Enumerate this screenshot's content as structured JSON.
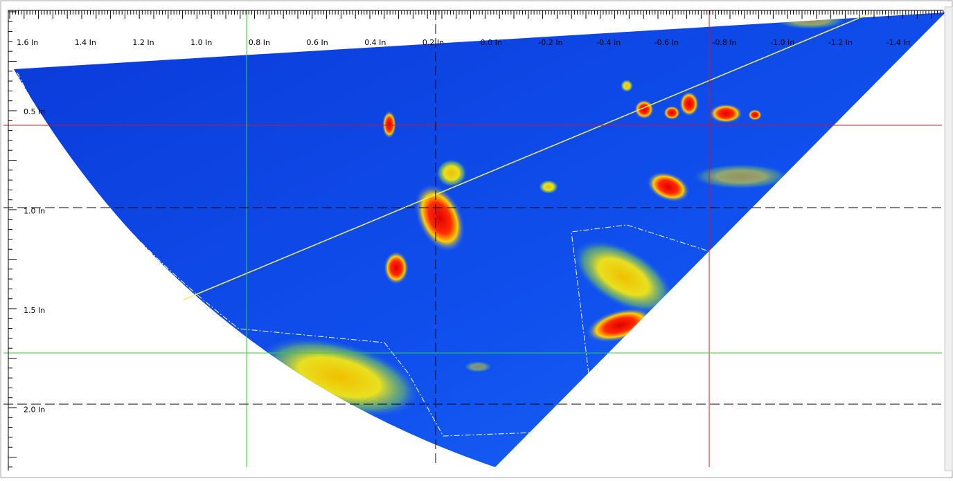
{
  "top_axis": {
    "labels": [
      "1.6 In",
      "1.4 In",
      "1.2 In",
      "1.0 In",
      "0.8 In",
      "0.6 In",
      "0.4 In",
      "0.2 In",
      "0.0 In",
      "-0.2 In",
      "-0.4 In",
      "-0.6 In",
      "-0.8 In",
      "-1.0 In",
      "-1.2 In",
      "-1.4 In"
    ]
  },
  "left_axis": {
    "labels": [
      "0.5 In",
      "1.0 In",
      "1.5 In",
      "2.0 In"
    ]
  }
}
